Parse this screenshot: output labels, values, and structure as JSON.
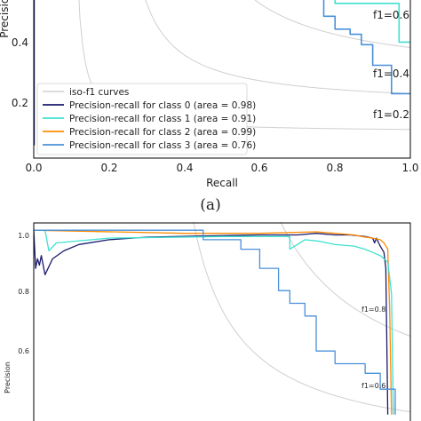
{
  "caption": "(a)",
  "chart_data": [
    {
      "type": "line",
      "panel": "a",
      "xlabel": "Recall",
      "ylabel": "Precision",
      "xlim": [
        0.0,
        1.0
      ],
      "ylim": [
        0.0,
        0.62
      ],
      "x_ticks": [
        "0.0",
        "0.2",
        "0.4",
        "0.6",
        "0.8",
        "1.0"
      ],
      "y_ticks": [
        "0.2",
        "0.4"
      ],
      "grid": false,
      "legend_position": "lower-left",
      "iso_f1_labels": [
        "f1=0.6",
        "f1=0.4",
        "f1=0.2"
      ],
      "legend": [
        {
          "label": "iso-f1 curves",
          "color": "#c8c8c8"
        },
        {
          "label": "Precision-recall for class 0 (area = 0.98)",
          "color": "#1a1a6e"
        },
        {
          "label": "Precision-recall for class 1 (area = 0.91)",
          "color": "#40e0d0"
        },
        {
          "label": "Precision-recall for class 2 (area = 0.99)",
          "color": "#ff8c00"
        },
        {
          "label": "Precision-recall for class 3 (area = 0.76)",
          "color": "#4a90d9"
        }
      ],
      "series": [
        {
          "color": "#4a90d9",
          "x": [
            0.77,
            0.77,
            0.8,
            0.8,
            0.84,
            0.84,
            0.87,
            0.87,
            0.9,
            0.9,
            0.95,
            0.95,
            1.0
          ],
          "y": [
            0.62,
            0.55,
            0.55,
            0.5,
            0.5,
            0.48,
            0.48,
            0.44,
            0.44,
            0.36,
            0.36,
            0.25,
            0.25
          ]
        },
        {
          "color": "#40e0d0",
          "x": [
            0.8,
            0.8,
            0.97,
            0.97,
            1.0
          ],
          "y": [
            0.62,
            0.6,
            0.6,
            0.45,
            0.45
          ]
        },
        {
          "color": "#1a1a6e",
          "x": [
            0.001,
            0.001
          ],
          "y": [
            0.05,
            0.62
          ]
        }
      ]
    },
    {
      "type": "line",
      "panel": "b",
      "xlabel": "",
      "ylabel": "Precision",
      "xlim": [
        0.0,
        1.0
      ],
      "ylim": [
        0.4,
        1.02
      ],
      "y_ticks": [
        "1.0",
        "0.8",
        "0.6"
      ],
      "grid": false,
      "iso_f1_labels": [
        "f1=0.8",
        "f1=0.6"
      ],
      "series": [
        {
          "color": "#1a1a6e",
          "x": [
            0.0,
            0.005,
            0.01,
            0.015,
            0.02,
            0.03,
            0.05,
            0.08,
            0.12,
            0.2,
            0.3,
            0.45,
            0.6,
            0.7,
            0.75,
            0.8,
            0.84,
            0.88,
            0.9,
            0.905,
            0.91,
            0.92,
            0.93,
            0.935,
            0.94
          ],
          "y": [
            1.0,
            0.88,
            0.91,
            0.89,
            0.92,
            0.86,
            0.91,
            0.935,
            0.955,
            0.97,
            0.978,
            0.982,
            0.985,
            0.985,
            0.99,
            0.985,
            0.985,
            0.98,
            0.975,
            0.96,
            0.975,
            0.95,
            0.93,
            0.88,
            0.42
          ]
        },
        {
          "color": "#ff8c00",
          "x": [
            0.0,
            0.4,
            0.6,
            0.75,
            0.8,
            0.85,
            0.87,
            0.9,
            0.92,
            0.93,
            0.94,
            0.945,
            0.95
          ],
          "y": [
            1.0,
            0.99,
            0.99,
            0.995,
            0.99,
            0.985,
            0.98,
            0.975,
            0.97,
            0.96,
            0.94,
            0.75,
            0.42
          ]
        },
        {
          "color": "#40e0d0",
          "x": [
            0.0,
            0.03,
            0.04,
            0.06,
            0.2,
            0.5,
            0.6,
            0.68,
            0.68,
            0.72,
            0.76,
            0.8,
            0.85,
            0.88,
            0.9,
            0.92,
            0.94,
            0.95,
            0.955
          ],
          "y": [
            1.0,
            1.0,
            0.935,
            0.96,
            0.975,
            0.98,
            0.98,
            0.98,
            0.94,
            0.97,
            0.965,
            0.955,
            0.95,
            0.94,
            0.93,
            0.92,
            0.9,
            0.8,
            0.42
          ]
        },
        {
          "color": "#4a90d9",
          "x": [
            0.0,
            0.45,
            0.45,
            0.55,
            0.55,
            0.6,
            0.6,
            0.65,
            0.65,
            0.68,
            0.68,
            0.72,
            0.72,
            0.75,
            0.75,
            0.8,
            0.8,
            0.88,
            0.88,
            0.92,
            0.92,
            0.96,
            0.96
          ],
          "y": [
            1.0,
            1.0,
            0.97,
            0.97,
            0.94,
            0.94,
            0.88,
            0.88,
            0.81,
            0.81,
            0.77,
            0.77,
            0.73,
            0.73,
            0.62,
            0.62,
            0.58,
            0.58,
            0.55,
            0.55,
            0.5,
            0.5,
            0.42
          ]
        }
      ]
    }
  ]
}
